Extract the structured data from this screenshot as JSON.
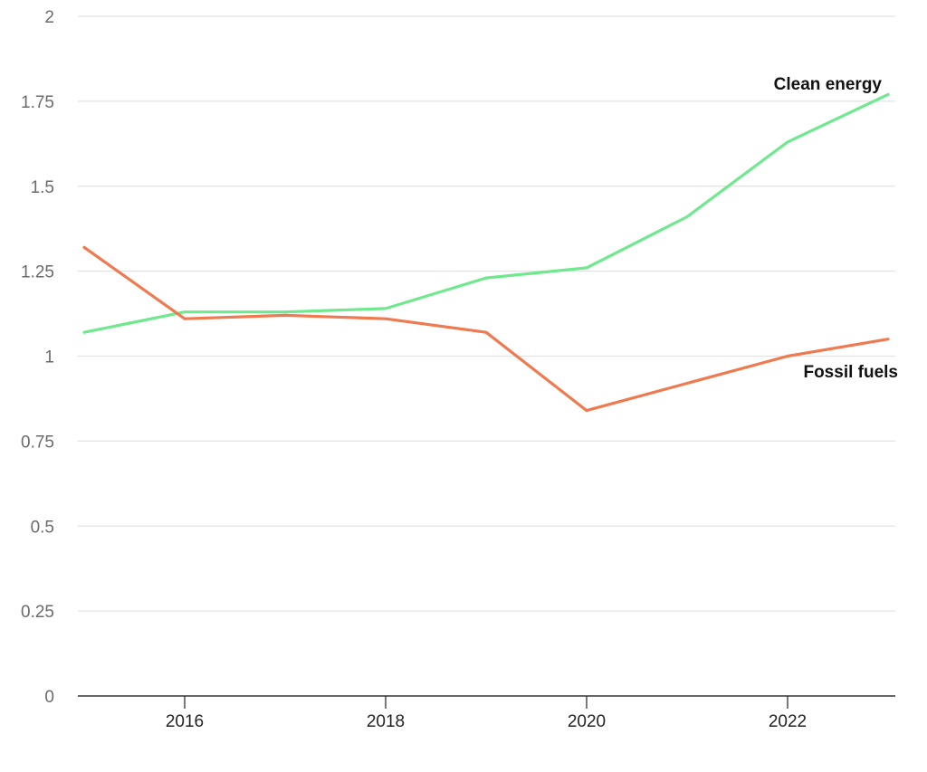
{
  "chart_data": {
    "type": "line",
    "title": "",
    "xlabel": "",
    "ylabel": "",
    "x": [
      2015,
      2016,
      2017,
      2018,
      2019,
      2020,
      2021,
      2022,
      2023
    ],
    "xlim": [
      2015,
      2023
    ],
    "ylim": [
      0,
      2
    ],
    "x_ticks": [
      2016,
      2018,
      2020,
      2022
    ],
    "y_ticks": [
      0,
      0.25,
      0.5,
      0.75,
      1,
      1.25,
      1.5,
      1.75,
      2
    ],
    "y_tick_labels": [
      "0",
      "0.25",
      "0.5",
      "0.75",
      "1",
      "1.25",
      "1.5",
      "1.75",
      "2"
    ],
    "x_tick_labels": [
      "2016",
      "2018",
      "2020",
      "2022"
    ],
    "grid": true,
    "legend": "direct-labels",
    "series": [
      {
        "name": "Clean energy",
        "color": "#6fe88e",
        "values": [
          1.07,
          1.13,
          1.13,
          1.14,
          1.23,
          1.26,
          1.41,
          1.63,
          1.77
        ]
      },
      {
        "name": "Fossil fuels",
        "color": "#f07a50",
        "values": [
          1.32,
          1.11,
          1.12,
          1.11,
          1.07,
          0.84,
          0.92,
          1.0,
          1.05
        ]
      }
    ]
  }
}
